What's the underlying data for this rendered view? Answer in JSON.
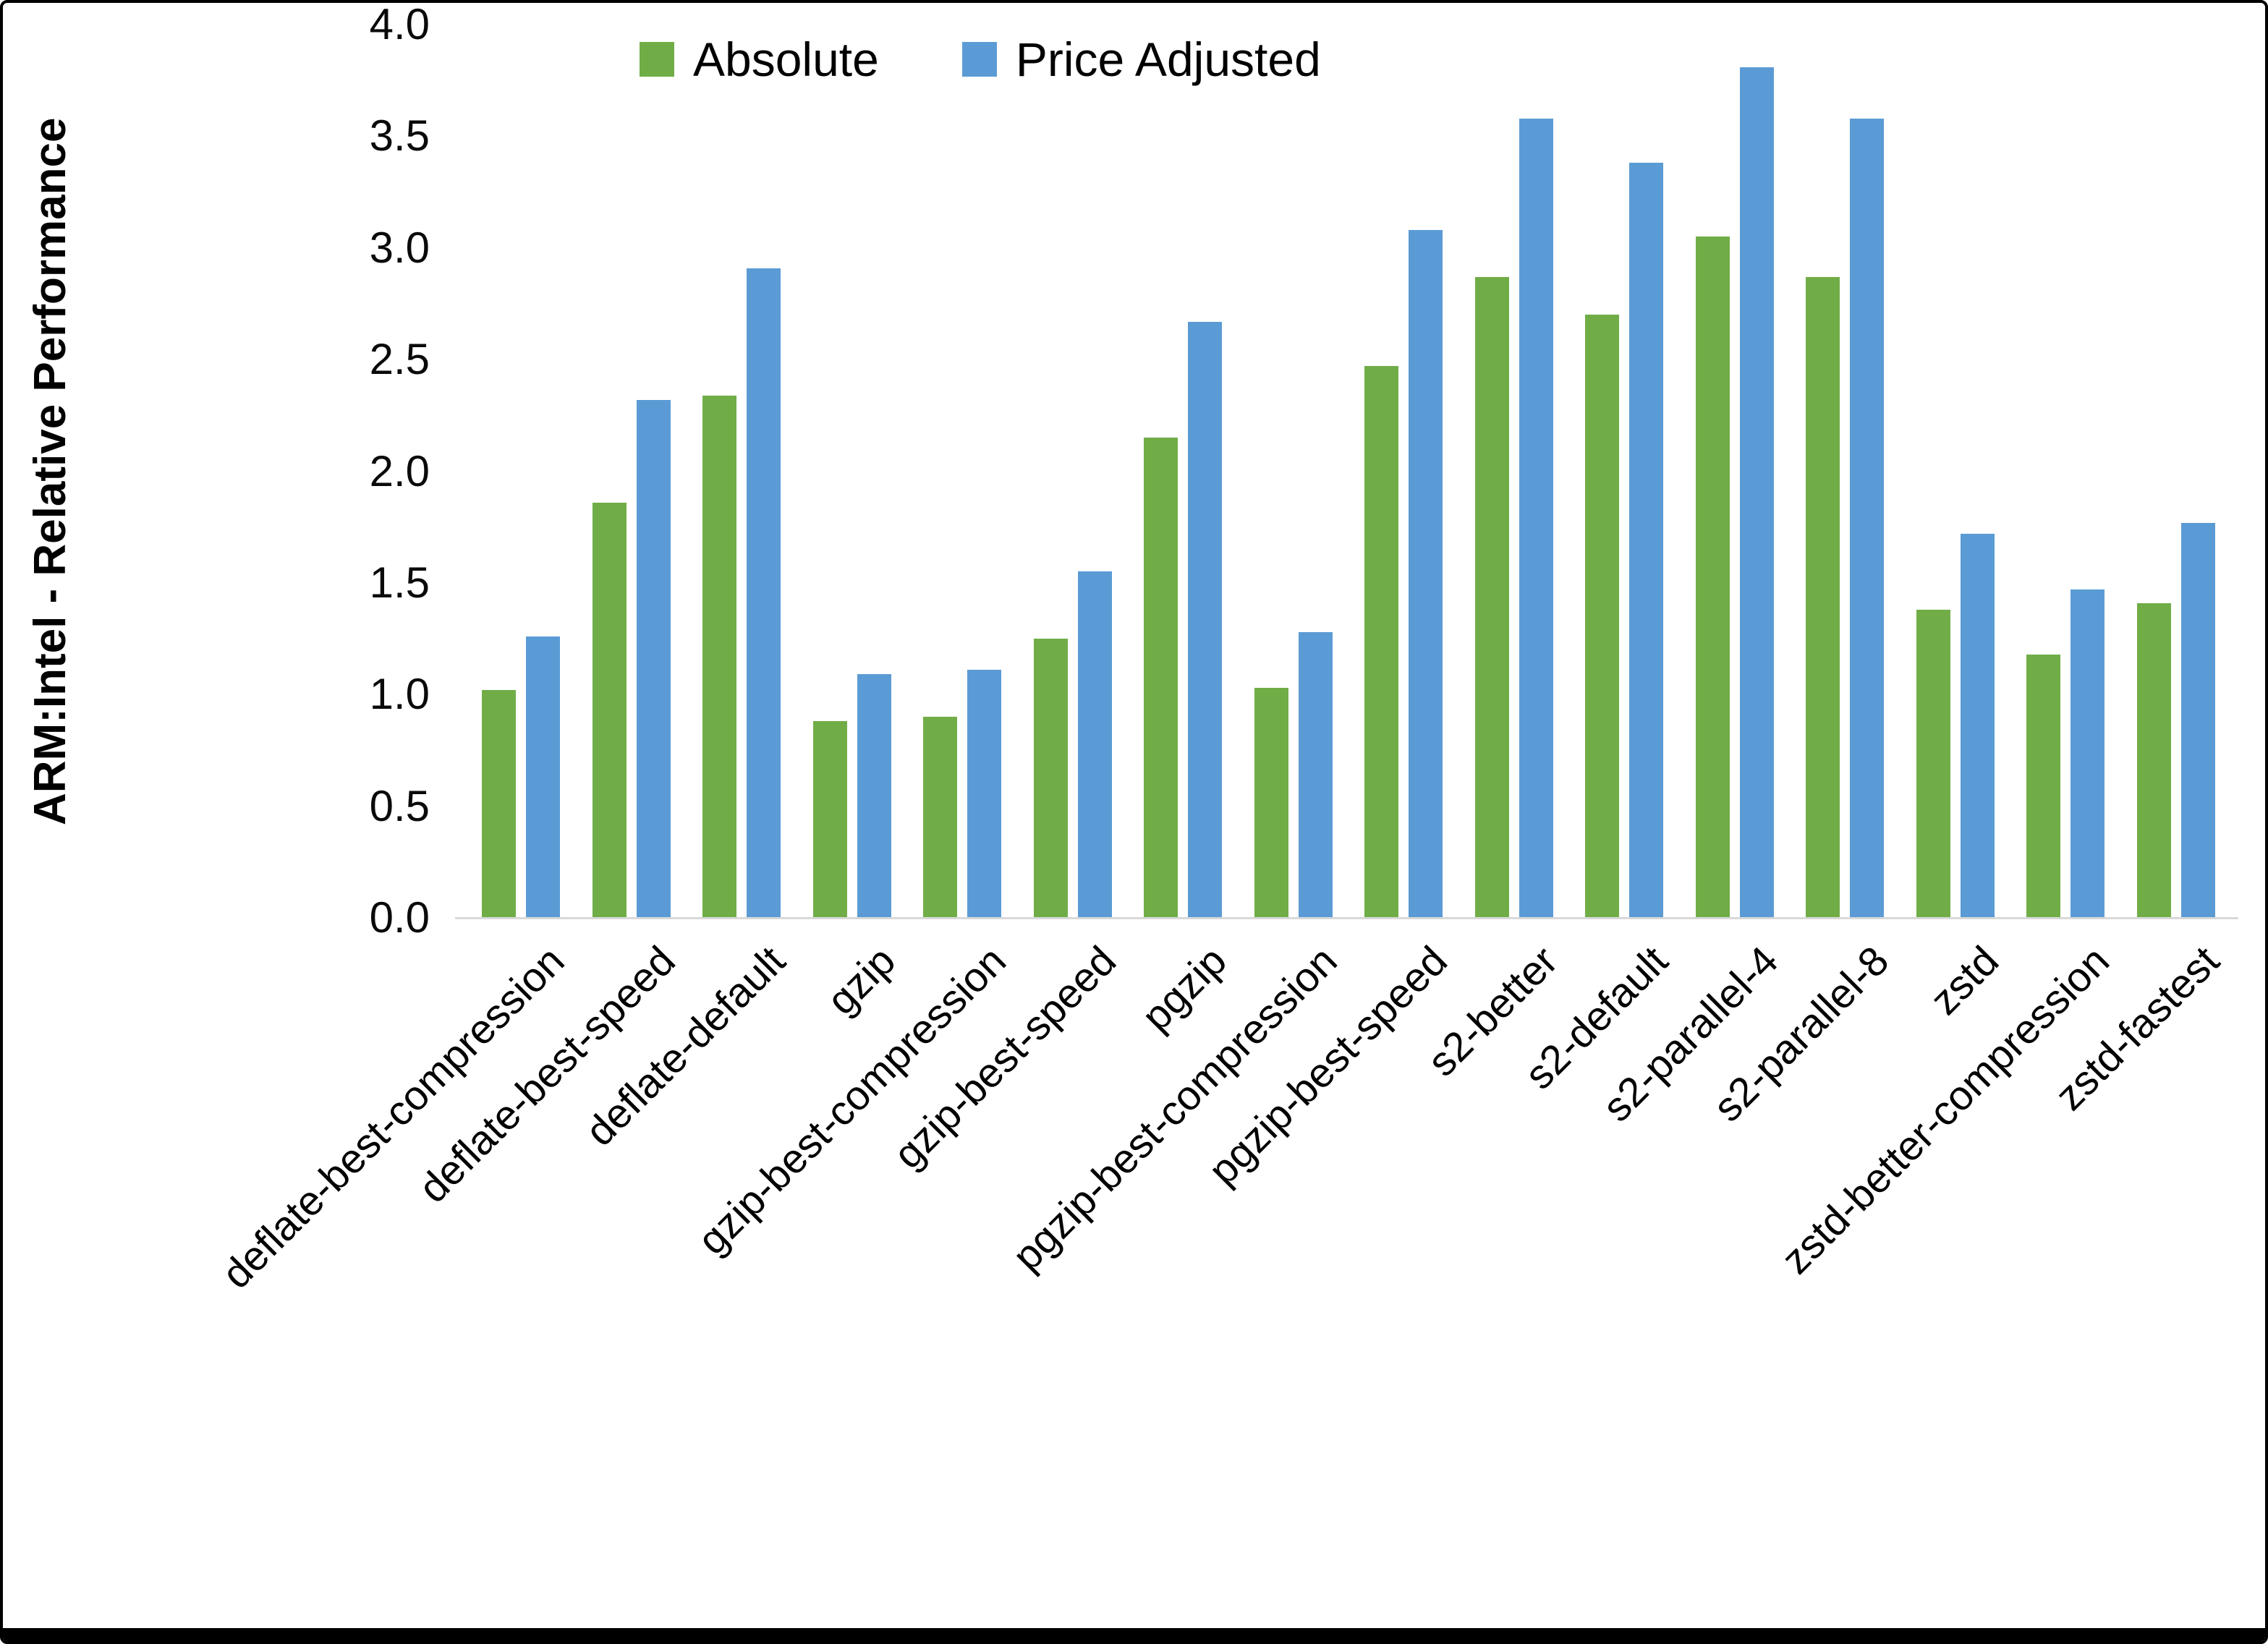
{
  "chart_data": {
    "type": "bar",
    "title": "",
    "xlabel": "",
    "ylabel": "ARM:Intel - Relative Performance",
    "ylim": [
      0,
      4.0
    ],
    "ytick_step": 0.5,
    "yticks": [
      "0.0",
      "0.5",
      "1.0",
      "1.5",
      "2.0",
      "2.5",
      "3.0",
      "3.5",
      "4.0"
    ],
    "grid": false,
    "legend_position": "top",
    "categories": [
      "deflate-best-compression",
      "deflate-best-speed",
      "deflate-default",
      "gzip",
      "gzip-best-compression",
      "gzip-best-speed",
      "pgzip",
      "pgzip-best-compression",
      "pgzip-best-speed",
      "s2-better",
      "s2-default",
      "s2-parallel-4",
      "s2-parallel-8",
      "zstd",
      "zstd-better-compression",
      "zstd-fastest"
    ],
    "series": [
      {
        "name": "Absolute",
        "color": "#70AD47",
        "values": [
          1.02,
          1.86,
          2.34,
          0.88,
          0.9,
          1.25,
          2.15,
          1.03,
          2.47,
          2.87,
          2.7,
          3.05,
          2.87,
          1.38,
          1.18,
          1.41
        ]
      },
      {
        "name": "Price Adjusted",
        "color": "#5B9BD5",
        "values": [
          1.26,
          2.32,
          2.91,
          1.09,
          1.11,
          1.55,
          2.67,
          1.28,
          3.08,
          3.58,
          3.38,
          3.81,
          3.58,
          1.72,
          1.47,
          1.77
        ]
      }
    ]
  }
}
